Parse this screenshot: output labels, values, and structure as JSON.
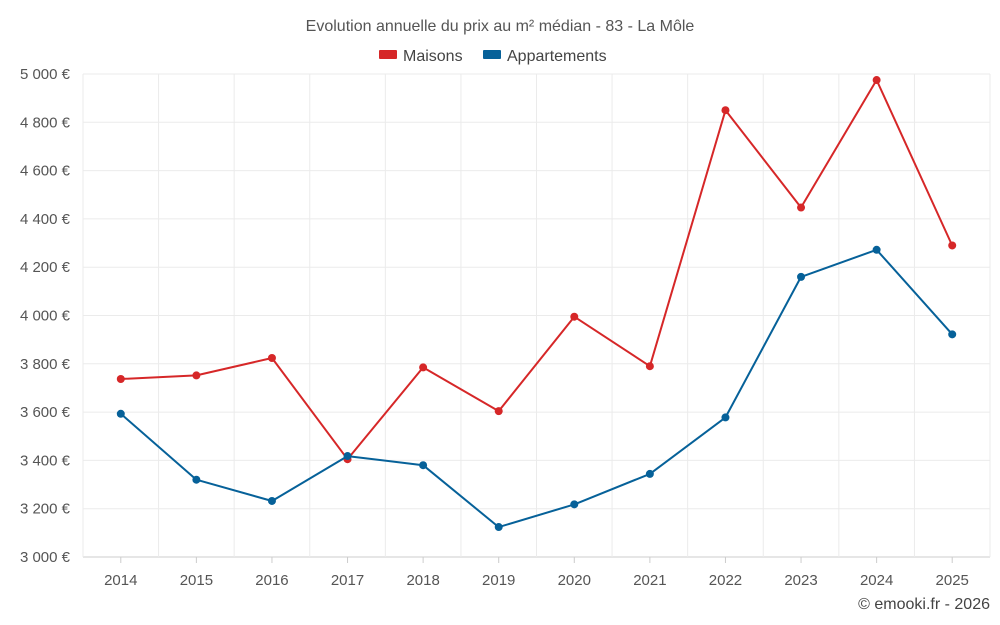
{
  "chart_data": {
    "type": "line",
    "title": "Evolution annuelle du prix au m² médian - 83 - La Môle",
    "xlabel": "",
    "ylabel": "",
    "categories": [
      "2014",
      "2015",
      "2016",
      "2017",
      "2018",
      "2019",
      "2020",
      "2021",
      "2022",
      "2023",
      "2024",
      "2025"
    ],
    "series": [
      {
        "name": "Maisons",
        "color": "#d62728",
        "values": [
          3737,
          3752,
          3824,
          3405,
          3785,
          3604,
          3995,
          3790,
          4850,
          4447,
          4975,
          4290
        ]
      },
      {
        "name": "Appartements",
        "color": "#066199",
        "values": [
          3593,
          3320,
          3232,
          3418,
          3380,
          3124,
          3218,
          3344,
          3578,
          4160,
          4272,
          3922
        ]
      }
    ],
    "ylim": [
      3000,
      5000
    ],
    "yticks": [
      3000,
      3200,
      3400,
      3600,
      3800,
      4000,
      4200,
      4400,
      4600,
      4800,
      5000
    ],
    "ytick_labels": [
      "3 000 €",
      "3 200 €",
      "3 400 €",
      "3 600 €",
      "3 800 €",
      "4 000 €",
      "4 200 €",
      "4 400 €",
      "4 600 €",
      "4 800 €",
      "5 000 €"
    ],
    "grid": true,
    "legend_position": "top-center"
  },
  "credit": "© emooki.fr - 2026"
}
